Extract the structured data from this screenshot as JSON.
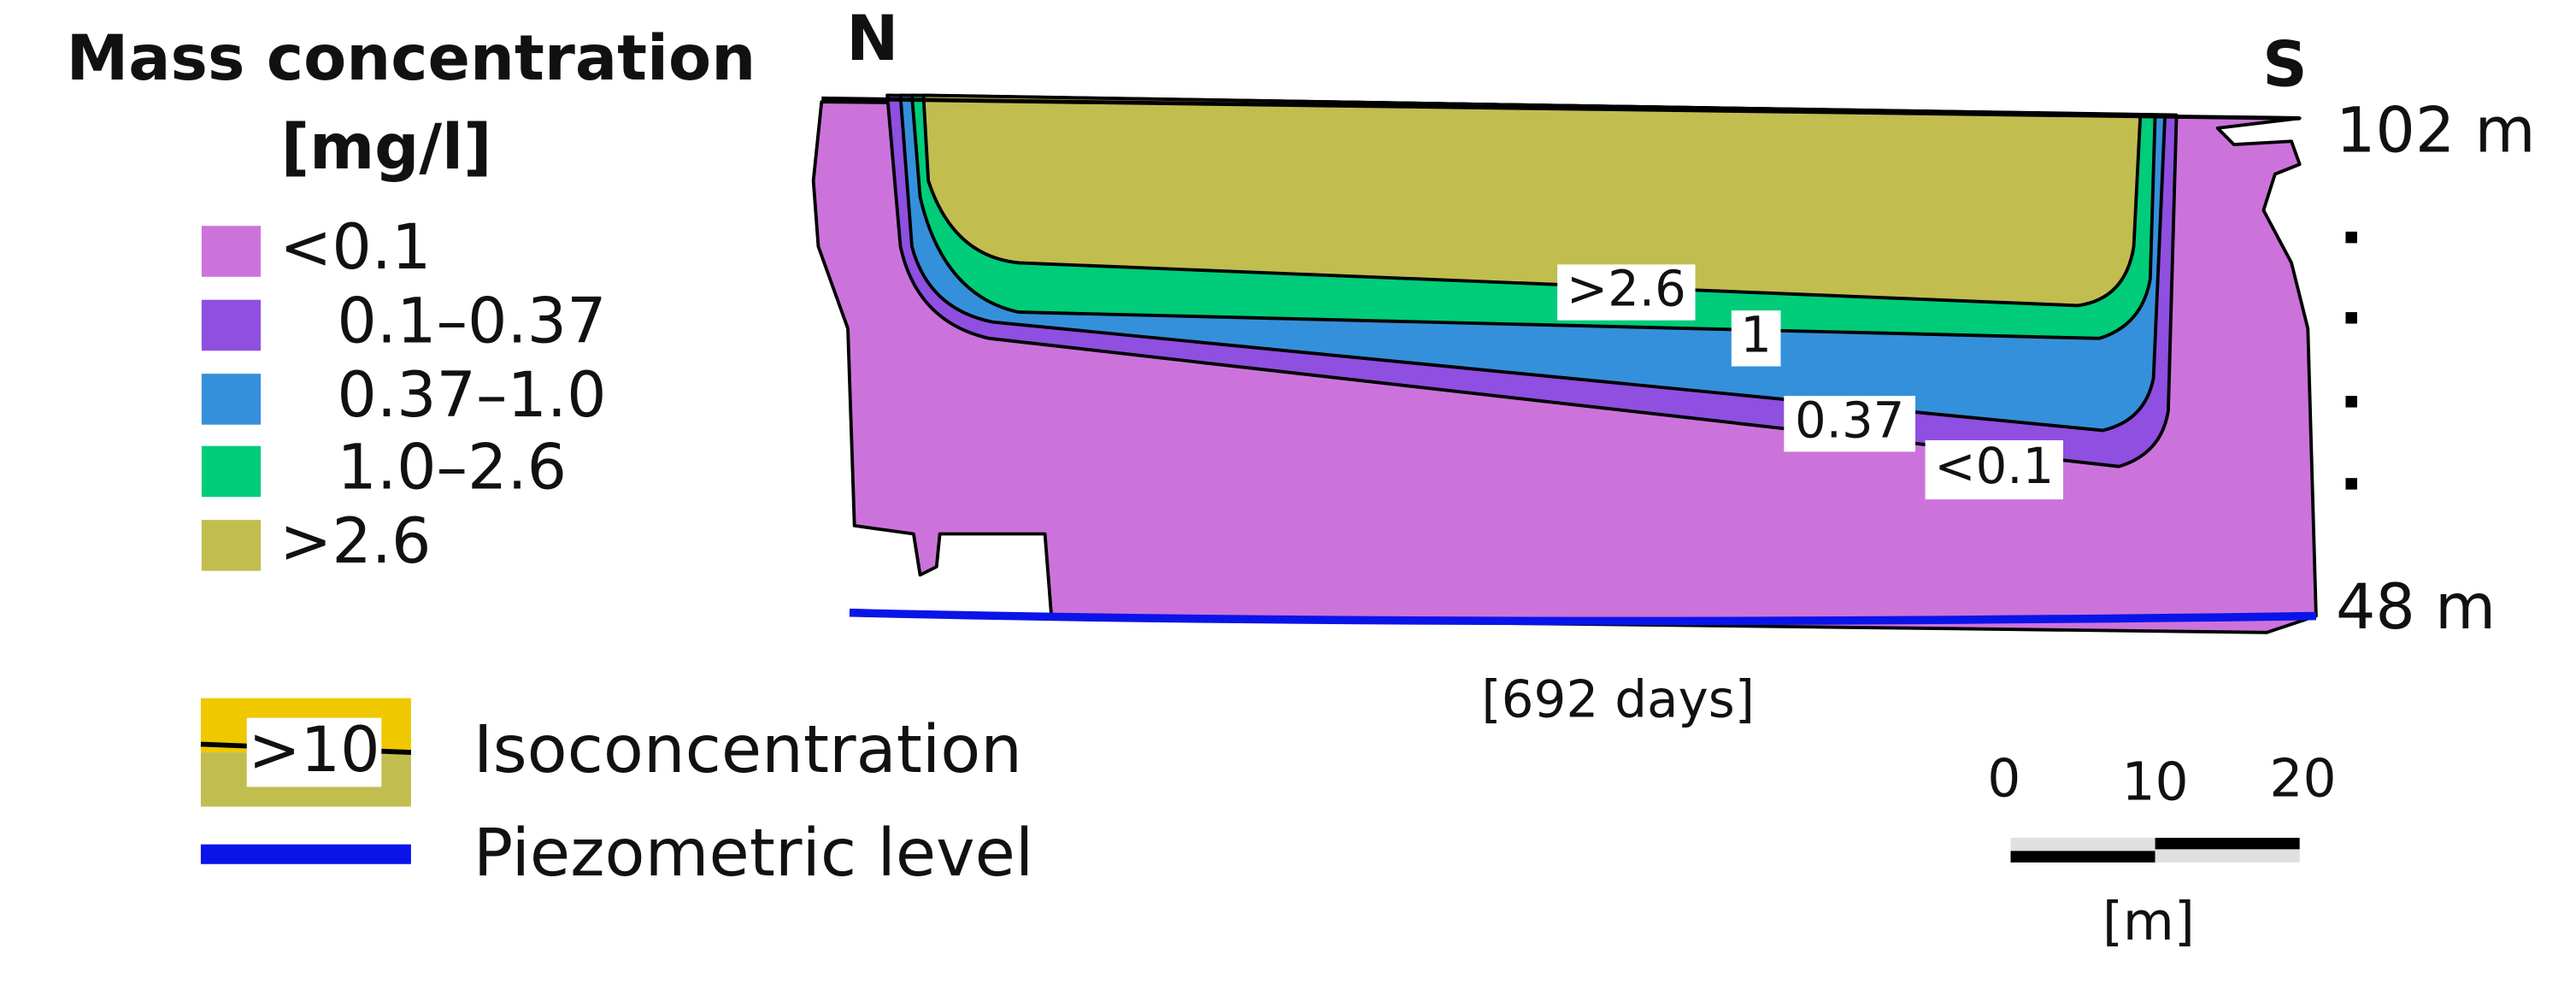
{
  "legend": {
    "title": "Mass concentration",
    "unit": "[mg/l]",
    "items": [
      {
        "label": "<0.1",
        "color": "#cc73db"
      },
      {
        "label": "0.1–0.37",
        "color": "#8f4fe0"
      },
      {
        "label": "0.37–1.0",
        "color": "#3590db"
      },
      {
        "label": "1.0–2.6",
        "color": "#00cc7a"
      },
      {
        "label": ">2.6",
        "color": "#c2bd4f"
      }
    ]
  },
  "symbols": {
    "isoconcentration": {
      "sample": ">10",
      "label": "Isoconcentration"
    },
    "piezometric": {
      "label": "Piezometric level",
      "color": "#0a14e8"
    }
  },
  "section": {
    "north": "N",
    "south": "S",
    "top_elevation": "102 m",
    "bottom_elevation": "48 m",
    "time": "[692 days]",
    "contour_labels": [
      ">2.6",
      "1",
      "0.37",
      "<0.1"
    ]
  },
  "scale_bar": {
    "ticks": [
      "0",
      "10",
      "20"
    ],
    "unit": "[m]"
  }
}
